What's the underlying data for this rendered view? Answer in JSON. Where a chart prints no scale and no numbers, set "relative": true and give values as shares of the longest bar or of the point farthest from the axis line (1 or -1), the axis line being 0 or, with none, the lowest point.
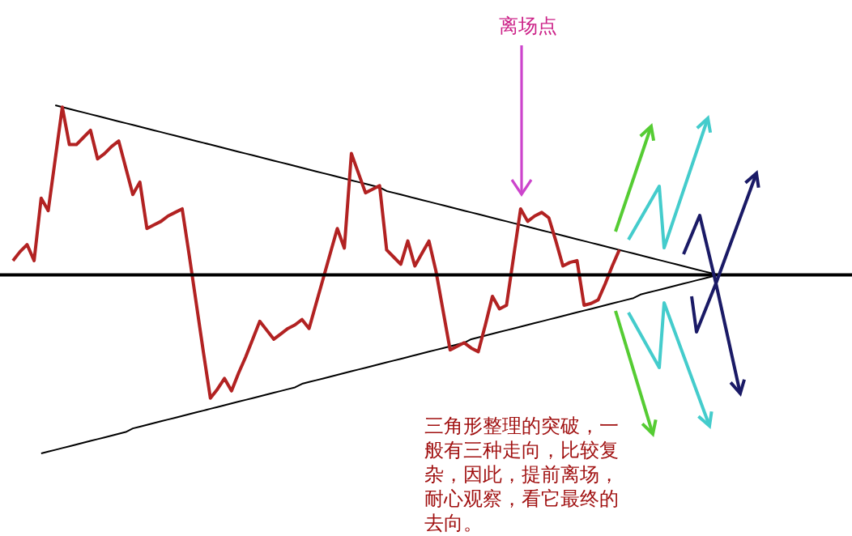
{
  "chart_data": {
    "type": "line",
    "relative": true,
    "tick_labels": false,
    "grid": false,
    "legend": false,
    "marker": "none",
    "line_style": "solid",
    "categories": [
      null,
      null,
      null,
      null,
      null,
      null,
      null,
      null,
      null,
      null,
      null,
      null,
      null,
      null,
      null,
      null,
      null,
      null,
      null,
      null,
      null,
      null,
      null,
      null,
      null,
      null,
      null,
      null,
      null,
      null,
      null,
      null,
      null,
      null,
      null,
      null,
      null,
      null,
      null,
      null,
      null,
      null,
      null,
      null,
      null,
      null,
      null,
      null,
      null,
      null,
      null,
      null,
      null,
      null,
      null,
      null,
      null,
      null,
      null,
      null,
      null,
      null,
      null,
      null,
      null,
      null,
      null,
      null,
      null,
      null,
      null,
      null,
      null,
      null,
      null,
      null,
      null,
      null,
      null,
      null,
      null,
      null,
      null,
      null,
      null,
      null,
      null,
      null,
      null,
      null,
      null,
      null,
      null,
      null,
      null,
      null,
      null,
      null,
      null,
      null,
      null,
      null,
      null,
      null,
      null,
      null,
      null,
      null,
      null,
      null,
      null,
      null,
      null,
      null,
      null,
      null,
      null,
      null,
      null,
      null
    ],
    "series": [
      {
        "color": "#b22222",
        "values": [
          0.08,
          0.13,
          0.17,
          0.08,
          0.43,
          0.36,
          0.65,
          0.94,
          0.73,
          0.73,
          0.77,
          0.81,
          0.65,
          0.68,
          0.72,
          0.75,
          0.6,
          0.45,
          0.52,
          0.26,
          0.28,
          0.3,
          0.33,
          0.35,
          0.37,
          0.11,
          -0.16,
          -0.43,
          -0.69,
          -0.64,
          -0.58,
          -0.65,
          -0.55,
          -0.46,
          -0.36,
          -0.26,
          -0.31,
          -0.36,
          -0.33,
          -0.3,
          -0.28,
          -0.25,
          -0.3,
          -0.16,
          -0.02,
          0.12,
          0.26,
          0.15,
          0.68,
          0.57,
          0.46,
          0.48,
          0.5,
          0.14,
          0.1,
          0.06,
          0.19,
          0.05,
          0.12,
          0.19,
          0.02,
          -0.2,
          -0.42,
          -0.4,
          -0.38,
          -0.41,
          -0.43,
          -0.28,
          -0.12,
          -0.19,
          -0.17,
          0.1,
          0.37,
          0.3,
          0.33,
          0.35,
          0.32,
          0.19,
          0.05,
          0.07,
          0.08,
          -0.17,
          -0.16,
          -0.14,
          -0.05,
          0.05,
          0.14,
          null,
          null,
          null,
          null,
          null,
          null,
          null,
          null,
          null,
          null,
          null,
          null,
          null,
          null,
          null,
          null,
          null,
          null,
          null,
          null,
          null,
          null,
          null,
          null,
          null,
          null,
          null,
          null,
          null,
          null,
          null,
          null,
          null
        ]
      },
      {
        "type": "line",
        "color": "#000000",
        "values": [
          null,
          null,
          null,
          null,
          null,
          null,
          0.95,
          0.94,
          0.93,
          0.92,
          0.91,
          0.9,
          0.89,
          0.88,
          0.87,
          0.86,
          0.85,
          0.84,
          0.83,
          0.82,
          0.81,
          0.8,
          0.79,
          0.78,
          0.77,
          0.76,
          0.75,
          0.74,
          0.73,
          0.72,
          0.71,
          0.7,
          0.69,
          0.68,
          0.67,
          0.66,
          0.65,
          0.64,
          0.63,
          0.62,
          0.61,
          0.6,
          0.59,
          0.58,
          0.57,
          0.56,
          0.55,
          0.54,
          0.53,
          0.52,
          0.51,
          0.5,
          0.49,
          0.47,
          0.46,
          0.45,
          0.44,
          0.43,
          0.42,
          0.41,
          0.4,
          0.39,
          0.38,
          0.37,
          0.36,
          0.35,
          0.34,
          0.33,
          0.32,
          0.31,
          0.3,
          0.29,
          0.28,
          0.27,
          0.26,
          0.25,
          0.24,
          0.23,
          0.22,
          0.21,
          0.2,
          0.19,
          0.18,
          0.17,
          0.16,
          0.15,
          0.14,
          0.13,
          0.12,
          0.11,
          0.1,
          0.09,
          0.08,
          0.07,
          0.06,
          0.05,
          0.04,
          0.03,
          0.02,
          0.01,
          0,
          null,
          null,
          null,
          null,
          null,
          null,
          null,
          null,
          null,
          null,
          null,
          null,
          null,
          null,
          null,
          null,
          null,
          null,
          null
        ]
      },
      {
        "type": "line",
        "color": "#000000",
        "values": [
          null,
          null,
          null,
          null,
          -1,
          -0.99,
          -0.98,
          -0.97,
          -0.96,
          -0.95,
          -0.94,
          -0.93,
          -0.92,
          -0.91,
          -0.9,
          -0.89,
          -0.88,
          -0.86,
          -0.85,
          -0.84,
          -0.83,
          -0.82,
          -0.81,
          -0.8,
          -0.79,
          -0.78,
          -0.77,
          -0.76,
          -0.75,
          -0.74,
          -0.73,
          -0.72,
          -0.71,
          -0.7,
          -0.69,
          -0.68,
          -0.67,
          -0.66,
          -0.65,
          -0.64,
          -0.63,
          -0.61,
          -0.6,
          -0.59,
          -0.58,
          -0.57,
          -0.56,
          -0.55,
          -0.54,
          -0.53,
          -0.52,
          -0.51,
          -0.5,
          -0.49,
          -0.48,
          -0.47,
          -0.46,
          -0.45,
          -0.44,
          -0.43,
          -0.42,
          -0.41,
          -0.4,
          -0.39,
          -0.38,
          -0.36,
          -0.35,
          -0.34,
          -0.33,
          -0.32,
          -0.31,
          -0.3,
          -0.29,
          -0.28,
          -0.27,
          -0.26,
          -0.25,
          -0.24,
          -0.23,
          -0.22,
          -0.21,
          -0.2,
          -0.19,
          -0.18,
          -0.17,
          -0.16,
          -0.15,
          -0.14,
          -0.13,
          -0.11,
          -0.1,
          -0.09,
          -0.08,
          -0.07,
          -0.06,
          -0.05,
          -0.04,
          -0.03,
          -0.02,
          -0.01,
          0,
          null,
          null,
          null,
          null,
          null,
          null,
          null,
          null,
          null,
          null,
          null,
          null,
          null,
          null,
          null,
          null,
          null,
          null,
          null
        ]
      }
    ],
    "annotations": [
      "离场点",
      "三角形整理的突破，一般有三种走向，比较复杂，因此，提前离场，耐心观察，看它最终的去向。"
    ]
  }
}
